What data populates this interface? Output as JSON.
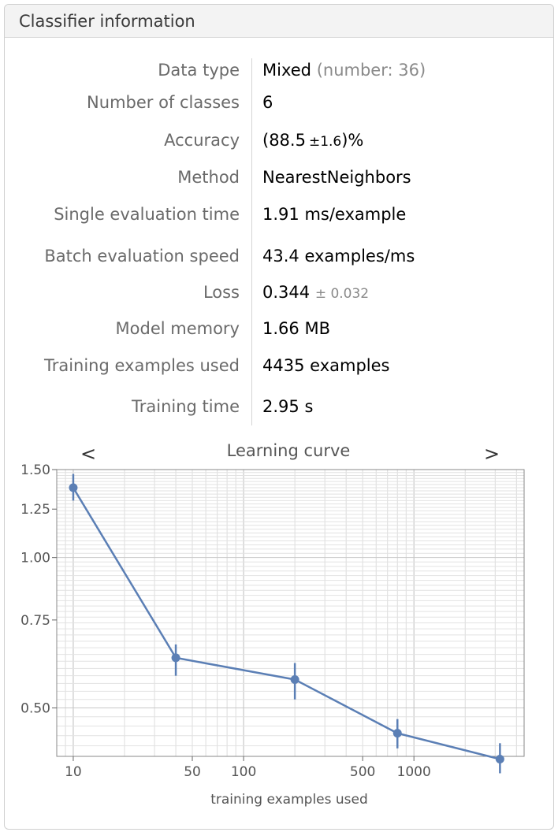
{
  "header": {
    "title": "Classifier information"
  },
  "info": {
    "data_type": {
      "label": "Data type",
      "value": "Mixed",
      "detail": "(number: 36)"
    },
    "classes": {
      "label": "Number of classes",
      "value": "6"
    },
    "accuracy": {
      "label": "Accuracy",
      "open": "(88.5",
      "pm": "±1.6",
      "close": ")%"
    },
    "method": {
      "label": "Method",
      "value": "NearestNeighbors"
    },
    "single_eval": {
      "label": "Single evaluation time",
      "value": "1.91",
      "unit": "ms/example"
    },
    "batch_eval": {
      "label": "Batch evaluation speed",
      "value": "43.4",
      "unit": "examples/ms"
    },
    "loss": {
      "label": "Loss",
      "value": "0.344",
      "pm": "± 0.032"
    },
    "memory": {
      "label": "Model memory",
      "value": "1.66",
      "unit": "MB"
    },
    "training_examples": {
      "label": "Training examples used",
      "value": "4435",
      "unit": "examples"
    },
    "training_time": {
      "label": "Training time",
      "value": "2.95",
      "unit": "s"
    }
  },
  "nav": {
    "prev": "<",
    "next": ">"
  },
  "colors": {
    "series": "#5b7fb5",
    "brown": "#7a6a55"
  },
  "chart_data": {
    "type": "line",
    "title": "Learning curve",
    "xlabel": "training examples used",
    "ylabel": "",
    "x_scale": "log",
    "y_scale": "log",
    "xlim": [
      8,
      4435
    ],
    "ylim": [
      0.4,
      1.5
    ],
    "grid": true,
    "x_ticks": [
      10,
      50,
      100,
      500,
      1000
    ],
    "x_tick_labels": [
      "10",
      "50",
      "100",
      "500",
      "1000"
    ],
    "y_ticks": [
      0.5,
      0.75,
      1.0,
      1.25,
      1.5
    ],
    "y_tick_labels": [
      "0.50",
      "0.75",
      "1.00",
      "1.25",
      "1.50"
    ],
    "series": [
      {
        "x": [
          10,
          40,
          200,
          800,
          3200
        ],
        "y": [
          1.38,
          0.63,
          0.57,
          0.445,
          0.395
        ],
        "err_low": [
          1.3,
          0.58,
          0.52,
          0.415,
          0.37
        ],
        "err_high": [
          1.47,
          0.67,
          0.615,
          0.475,
          0.425
        ]
      }
    ]
  }
}
